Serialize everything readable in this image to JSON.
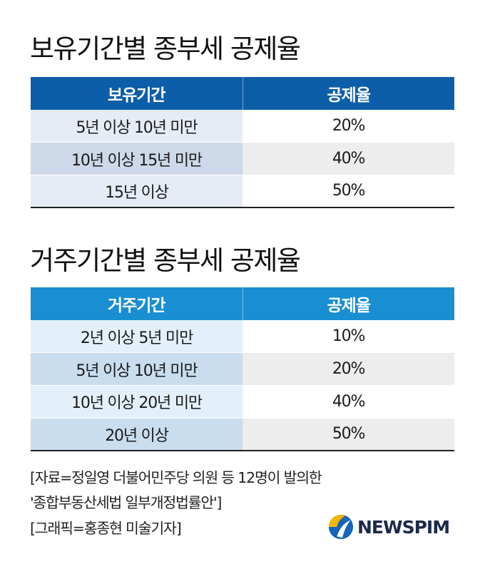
{
  "title1": "보유기간별 종부세 공제율",
  "table1": {
    "headers": [
      "보유기간",
      "공제율"
    ],
    "rows": [
      {
        "period": "5년 이상 10년 미만",
        "rate": "20%"
      },
      {
        "period": "10년 이상 15년 미만",
        "rate": "40%"
      },
      {
        "period": "15년 이상",
        "rate": "50%"
      }
    ]
  },
  "title2": "거주기간별 종부세 공제율",
  "table2": {
    "headers": [
      "거주기간",
      "공제율"
    ],
    "rows": [
      {
        "period": "2년 이상 5년 미만",
        "rate": "10%"
      },
      {
        "period": "5년 이상 10년 미만",
        "rate": "20%"
      },
      {
        "period": "10년 이상 20년 미만",
        "rate": "40%"
      },
      {
        "period": "20년 이상",
        "rate": "50%"
      }
    ]
  },
  "notes": [
    "[자료=정일영 더불어민주당 의원 등 12명이 발의한",
    "'종합부동산세법 일부개정법률안']",
    "[그래픽=홍종현 미술기자]"
  ],
  "logo": {
    "text": "NEWSPIM",
    "icon": "newspim-logo-icon",
    "colors": {
      "gold": "#f2b705",
      "blue": "#1565b8"
    }
  }
}
